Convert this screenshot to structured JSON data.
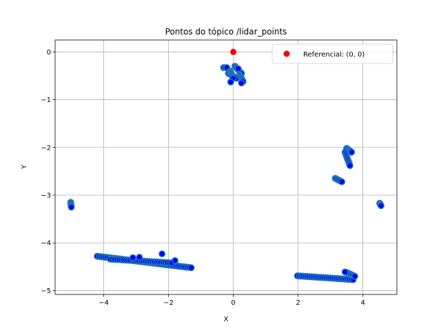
{
  "chart_data": {
    "type": "scatter",
    "title": "Pontos do tópico /lidar_points",
    "xlabel": "X",
    "ylabel": "Y",
    "xlim": [
      -5.5,
      5.05
    ],
    "ylim": [
      -5.08,
      0.25
    ],
    "xticks": [
      -4,
      -2,
      0,
      2,
      4
    ],
    "yticks": [
      0,
      -1,
      -2,
      -3,
      -4,
      -5
    ],
    "grid": true,
    "legend_position": "upper right",
    "colors": {
      "lidar_fill": "#0000ff",
      "lidar_edge": "#1f77b4",
      "origin": "#ff0000"
    },
    "origin_series": {
      "name": "Referencial: (0, 0)",
      "x": [
        0
      ],
      "y": [
        0
      ]
    },
    "segments": [
      {
        "x": [
          -0.3,
          -0.2
        ],
        "y": [
          -0.33,
          -0.33
        ],
        "step": 0.05
      },
      {
        "x": [
          -0.15,
          0.1
        ],
        "y": [
          -0.45,
          -0.55
        ],
        "step": 0.04
      },
      {
        "x": [
          0.05,
          0.25
        ],
        "y": [
          -0.3,
          -0.45
        ],
        "step": 0.04
      },
      {
        "x": [
          0.2,
          0.3
        ],
        "y": [
          -0.48,
          -0.62
        ],
        "step": 0.03
      },
      {
        "x": [
          -0.1,
          0.0
        ],
        "y": [
          -0.4,
          -0.55
        ],
        "step": 0.03
      },
      {
        "x": [
          3.5,
          3.65
        ],
        "y": [
          -2.02,
          -2.1
        ],
        "step": 0.04
      },
      {
        "x": [
          3.45,
          3.6
        ],
        "y": [
          -2.1,
          -2.38
        ],
        "step": 0.04
      },
      {
        "x": [
          3.15,
          3.35
        ],
        "y": [
          -2.65,
          -2.72
        ],
        "step": 0.05
      },
      {
        "x": [
          -5.02,
          -5.0
        ],
        "y": [
          -3.15,
          -3.25
        ],
        "step": 0.03
      },
      {
        "x": [
          4.52,
          4.56
        ],
        "y": [
          -3.17,
          -3.22
        ],
        "step": 0.02
      },
      {
        "x": [
          -4.2,
          -1.3
        ],
        "y": [
          -4.28,
          -4.52
        ],
        "step": 0.06
      },
      {
        "x": [
          -3.8,
          -1.9
        ],
        "y": [
          -4.34,
          -4.42
        ],
        "step": 0.07
      },
      {
        "x": [
          1.98,
          3.7
        ],
        "y": [
          -4.69,
          -4.77
        ],
        "step": 0.06
      },
      {
        "x": [
          3.5,
          3.75
        ],
        "y": [
          -4.62,
          -4.7
        ],
        "step": 0.05
      }
    ],
    "points": [
      {
        "x": -2.2,
        "y": -4.23
      },
      {
        "x": -3.1,
        "y": -4.31
      },
      {
        "x": -2.9,
        "y": -4.3
      },
      {
        "x": -1.8,
        "y": -4.37
      },
      {
        "x": 3.45,
        "y": -4.61
      },
      {
        "x": 0.15,
        "y": -0.35
      },
      {
        "x": -0.08,
        "y": -0.63
      },
      {
        "x": 0.25,
        "y": -0.65
      }
    ]
  }
}
